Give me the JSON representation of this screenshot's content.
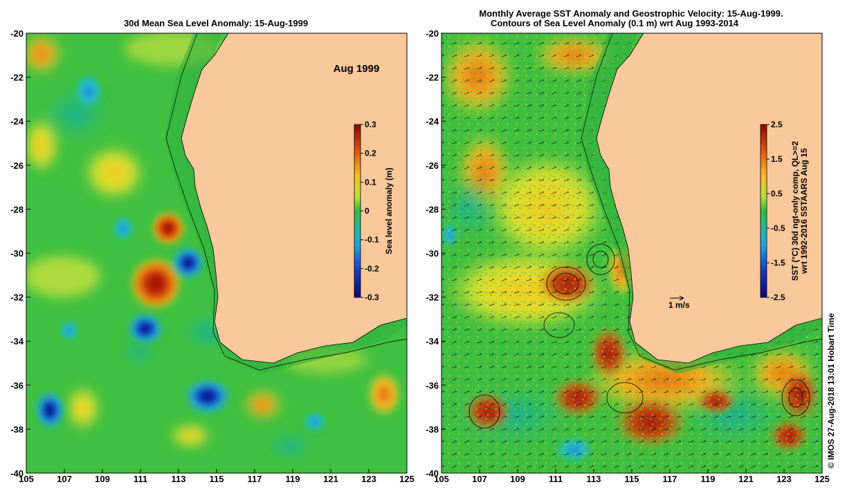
{
  "left_panel": {
    "title": "30d Mean Sea Level Anomaly: 15-Aug-1999",
    "period_label": "Aug 1999",
    "colorbar": {
      "title": "Sea level anomaly (m)",
      "ticks": [
        "0.3",
        "0.2",
        "0.1",
        "0",
        "-0.1",
        "-0.2",
        "-0.3"
      ]
    }
  },
  "right_panel": {
    "title_line1": "Monthly Average SST Anomaly  and Geostrophic Velocity: 15-Aug-1999.",
    "title_line2": "Contours of Sea Level Anomaly (0.1 m) wrt Aug 1993-2014",
    "velocity_scale_label": "1 m/s",
    "colorbar": {
      "title_line1": "SST (°C) 30d ngt-only comp, QL>=2",
      "title_line2": "wrt 1992-2016 SSTAARS Aug 15",
      "ticks": [
        "2.5",
        "1.5",
        "0.5",
        "-0.5",
        "-1.5",
        "-2.5"
      ]
    }
  },
  "axes": {
    "lon_ticks": [
      "105",
      "107",
      "109",
      "111",
      "113",
      "115",
      "117",
      "119",
      "121",
      "123",
      "125"
    ],
    "lat_ticks": [
      "-20",
      "-22",
      "-24",
      "-26",
      "-28",
      "-30",
      "-32",
      "-34",
      "-36",
      "-38",
      "-40"
    ]
  },
  "credit": "©  IMOS 27-Aug-2018 13:01 Hobart Time",
  "colors": {
    "land": "#f9c89b",
    "background_green": "#3fbf3f"
  }
}
